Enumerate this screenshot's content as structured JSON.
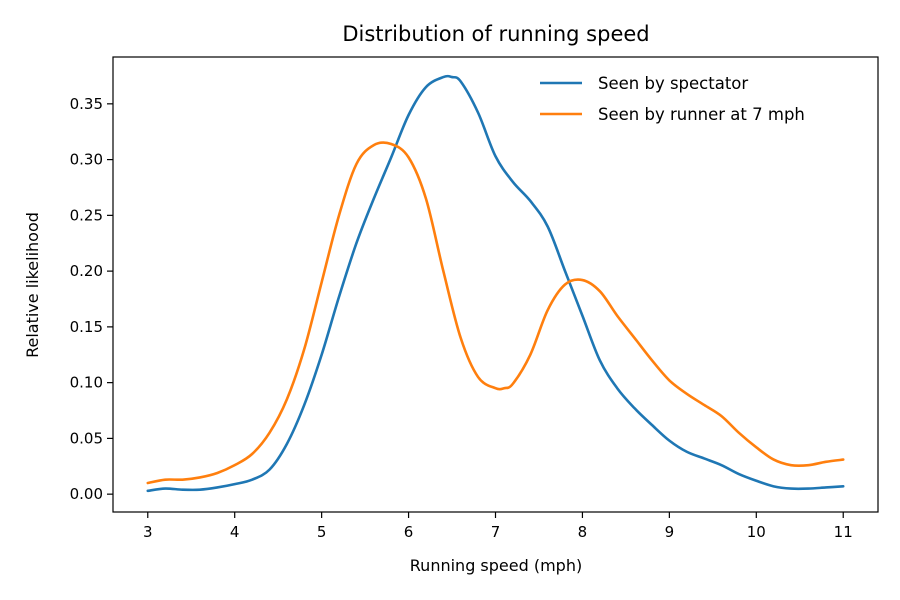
{
  "chart_data": {
    "type": "line",
    "title": "Distribution of running speed",
    "xlabel": "Running speed (mph)",
    "ylabel": "Relative likelihood",
    "xlim": [
      2.6,
      11.4
    ],
    "ylim": [
      -0.016,
      0.392
    ],
    "xticks": [
      3,
      4,
      5,
      6,
      7,
      8,
      9,
      10,
      11
    ],
    "xtick_labels": [
      "3",
      "4",
      "5",
      "6",
      "7",
      "8",
      "9",
      "10",
      "11"
    ],
    "yticks": [
      0.0,
      0.05,
      0.1,
      0.15,
      0.2,
      0.25,
      0.3,
      0.35
    ],
    "ytick_labels": [
      "0.00",
      "0.05",
      "0.10",
      "0.15",
      "0.20",
      "0.25",
      "0.30",
      "0.35"
    ],
    "grid": false,
    "legend_position": "top-right",
    "series": [
      {
        "name": "Seen by spectator",
        "color": "#1f77b4",
        "x": [
          3.0,
          3.2,
          3.4,
          3.6,
          3.8,
          4.0,
          4.2,
          4.4,
          4.6,
          4.8,
          5.0,
          5.2,
          5.4,
          5.6,
          5.8,
          6.0,
          6.2,
          6.4,
          6.5,
          6.6,
          6.8,
          7.0,
          7.2,
          7.4,
          7.6,
          7.8,
          8.0,
          8.2,
          8.4,
          8.6,
          8.8,
          9.0,
          9.2,
          9.4,
          9.6,
          9.8,
          10.0,
          10.2,
          10.4,
          10.6,
          10.8,
          11.0
        ],
        "y": [
          0.003,
          0.005,
          0.004,
          0.004,
          0.006,
          0.009,
          0.013,
          0.022,
          0.045,
          0.08,
          0.125,
          0.177,
          0.225,
          0.265,
          0.302,
          0.34,
          0.365,
          0.374,
          0.374,
          0.37,
          0.342,
          0.303,
          0.28,
          0.263,
          0.24,
          0.2,
          0.16,
          0.12,
          0.095,
          0.077,
          0.062,
          0.048,
          0.038,
          0.032,
          0.026,
          0.018,
          0.012,
          0.007,
          0.005,
          0.005,
          0.006,
          0.007
        ]
      },
      {
        "name": "Seen by runner at 7 mph",
        "color": "#ff7f0e",
        "x": [
          3.0,
          3.2,
          3.4,
          3.6,
          3.8,
          4.0,
          4.2,
          4.4,
          4.6,
          4.8,
          5.0,
          5.2,
          5.4,
          5.6,
          5.8,
          6.0,
          6.2,
          6.4,
          6.6,
          6.8,
          7.0,
          7.1,
          7.2,
          7.4,
          7.6,
          7.8,
          8.0,
          8.2,
          8.4,
          8.6,
          8.8,
          9.0,
          9.2,
          9.4,
          9.6,
          9.8,
          10.0,
          10.2,
          10.4,
          10.6,
          10.8,
          11.0
        ],
        "y": [
          0.01,
          0.013,
          0.013,
          0.015,
          0.019,
          0.026,
          0.036,
          0.055,
          0.085,
          0.13,
          0.19,
          0.25,
          0.296,
          0.313,
          0.314,
          0.302,
          0.265,
          0.2,
          0.14,
          0.105,
          0.095,
          0.095,
          0.099,
          0.125,
          0.165,
          0.188,
          0.192,
          0.182,
          0.16,
          0.14,
          0.12,
          0.102,
          0.09,
          0.08,
          0.07,
          0.055,
          0.042,
          0.031,
          0.026,
          0.026,
          0.029,
          0.031
        ]
      }
    ]
  }
}
